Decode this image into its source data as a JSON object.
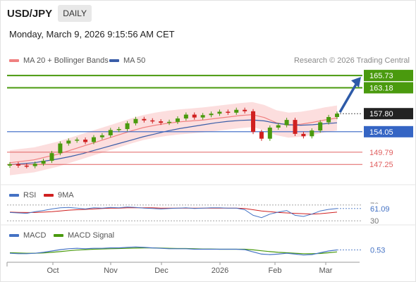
{
  "header": {
    "symbol": "USD/JPY",
    "timeframe": "DAILY",
    "datetime": "Monday, March 9, 2026 9:15:56 AM CET"
  },
  "legend_main": [
    {
      "label": "MA 20 + Bollinger Bands",
      "color": "#f08080"
    },
    {
      "label": "MA 50",
      "color": "#3a5da8"
    }
  ],
  "copyright": "Research © 2026 Trading Central",
  "colors": {
    "target": "#4a9a0e",
    "pivot": "#3565c4",
    "support": "#e06060",
    "current": "#222222",
    "arrow": "#2d5aa8",
    "up_candle": "#4a9a0e",
    "down_candle": "#d02020"
  },
  "chart_data": [
    {
      "type": "line",
      "title": "",
      "x_ticks": [
        "Oct",
        "Nov",
        "Dec",
        "2026",
        "Feb",
        "Mar"
      ],
      "ylim": [
        144.5,
        167.5
      ],
      "levels": [
        {
          "value": 165.73,
          "label": "165.73",
          "kind": "target"
        },
        {
          "value": 163.18,
          "label": "163.18",
          "kind": "target"
        },
        {
          "value": 157.8,
          "label": "157.80",
          "kind": "current"
        },
        {
          "value": 154.05,
          "label": "154.05",
          "kind": "pivot"
        },
        {
          "value": 149.79,
          "label": "149.79",
          "kind": "support"
        },
        {
          "value": 147.25,
          "label": "147.25",
          "kind": "support"
        }
      ],
      "series": [
        {
          "name": "MA 20 + Bollinger Bands",
          "values": [
            147.6,
            147.9,
            148.2,
            148.8,
            149.4,
            150.2,
            151.0,
            151.8,
            152.6,
            153.4,
            154.2,
            154.9,
            155.4,
            155.8,
            156.1,
            156.3,
            156.5,
            156.8,
            157.1,
            157.4,
            157.6,
            157.0,
            155.9,
            155.4,
            155.6,
            156.0,
            156.5,
            156.9
          ]
        },
        {
          "name": "MA 50",
          "values": [
            147.2,
            147.4,
            147.6,
            148.0,
            148.4,
            148.9,
            149.5,
            150.2,
            150.9,
            151.6,
            152.3,
            153.0,
            153.6,
            154.2,
            154.7,
            155.1,
            155.5,
            155.9,
            156.2,
            156.4,
            156.5,
            156.3,
            155.8,
            155.5,
            155.4,
            155.5,
            155.7,
            155.9
          ]
        }
      ],
      "ohlc_close": [
        147.3,
        147.0,
        146.9,
        147.4,
        148.0,
        149.6,
        151.6,
        152.2,
        152.4,
        151.9,
        152.9,
        153.3,
        154.4,
        154.6,
        155.8,
        156.7,
        156.4,
        156.2,
        155.9,
        156.1,
        156.8,
        157.6,
        157.0,
        157.5,
        157.8,
        158.2,
        158.0,
        158.6,
        158.3,
        154.0,
        152.6,
        154.9,
        155.4,
        156.5,
        153.6,
        153.1,
        154.3,
        156.0,
        157.1,
        157.8
      ]
    },
    {
      "type": "line",
      "title": "RSI",
      "legend": [
        {
          "name": "RSI",
          "color": "#4472c4"
        },
        {
          "name": "9MA",
          "color": "#d02020"
        }
      ],
      "ylim": [
        25,
        75
      ],
      "levels": [
        70,
        30
      ],
      "last_value_label": "61.09",
      "level_labels": [
        "70",
        "30"
      ],
      "series": [
        {
          "name": "RSI",
          "values": [
            51,
            50,
            49,
            53,
            56,
            60,
            63,
            64,
            62,
            60,
            63,
            62,
            64,
            63,
            65,
            64,
            62,
            61,
            60,
            61,
            62,
            63,
            61,
            62,
            63,
            63,
            62,
            62,
            58,
            44,
            38,
            47,
            52,
            56,
            44,
            41,
            47,
            55,
            59,
            61.09
          ]
        },
        {
          "name": "9MA",
          "values": [
            52,
            51.5,
            51,
            51,
            52,
            53,
            55,
            57,
            58,
            59,
            60,
            61,
            62,
            62,
            63,
            63,
            63,
            63,
            62,
            62,
            62,
            62,
            62,
            62,
            62,
            62,
            62,
            62,
            61,
            58,
            55,
            53,
            51,
            50,
            49,
            48,
            47,
            48,
            50,
            52
          ]
        }
      ]
    },
    {
      "type": "line",
      "title": "MACD",
      "legend": [
        {
          "name": "MACD",
          "color": "#4472c4"
        },
        {
          "name": "MACD Signal",
          "color": "#4a9a0e"
        }
      ],
      "ylim": [
        -1.6,
        2.2
      ],
      "last_value_label": "0.53",
      "series": [
        {
          "name": "MACD",
          "values": [
            -0.2,
            -0.3,
            -0.3,
            -0.2,
            0.0,
            0.3,
            0.6,
            0.8,
            0.9,
            0.8,
            0.9,
            0.9,
            1.0,
            1.0,
            1.1,
            1.2,
            1.1,
            1.0,
            0.9,
            0.8,
            0.8,
            0.8,
            0.7,
            0.7,
            0.7,
            0.7,
            0.7,
            0.7,
            0.6,
            0.1,
            -0.4,
            -0.5,
            -0.4,
            -0.2,
            -0.4,
            -0.6,
            -0.5,
            -0.1,
            0.3,
            0.53
          ]
        },
        {
          "name": "MACD Signal",
          "values": [
            -0.1,
            -0.15,
            -0.2,
            -0.2,
            -0.15,
            0.0,
            0.15,
            0.35,
            0.5,
            0.6,
            0.7,
            0.75,
            0.8,
            0.85,
            0.9,
            0.95,
            1.0,
            1.0,
            0.95,
            0.9,
            0.85,
            0.85,
            0.8,
            0.75,
            0.75,
            0.7,
            0.7,
            0.7,
            0.7,
            0.55,
            0.35,
            0.15,
            0.0,
            -0.1,
            -0.2,
            -0.3,
            -0.3,
            -0.25,
            -0.1,
            0.1
          ]
        }
      ]
    }
  ]
}
